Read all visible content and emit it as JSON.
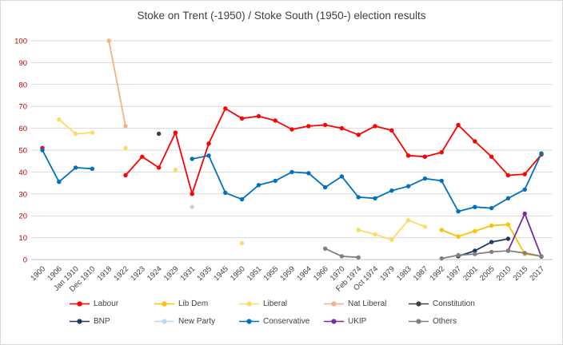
{
  "chart_data": {
    "type": "line",
    "title": "Stoke on Trent (-1950) / Stoke South (1950-) election results",
    "xlabel": "",
    "ylabel": "",
    "ylim": [
      0,
      100
    ],
    "ytick_interval": 10,
    "grid": true,
    "legend_position": "bottom",
    "categories": [
      "1900",
      "1906",
      "Jan 1910",
      "Dec 1910",
      "1918",
      "1922",
      "1923",
      "1924",
      "1929",
      "1931",
      "1935",
      "1945",
      "1950",
      "1951",
      "1955",
      "1959",
      "1964",
      "1966",
      "1970",
      "Feb 1974",
      "Oct 1974",
      "1979",
      "1983",
      "1987",
      "1992",
      "1997",
      "2001",
      "2005",
      "2010",
      "2015",
      "2017"
    ],
    "series": [
      {
        "name": "Labour",
        "color": "#FF0000",
        "values": [
          51,
          null,
          null,
          null,
          null,
          38.5,
          47,
          42,
          58,
          30,
          53,
          69,
          64.5,
          65.5,
          63.5,
          59.5,
          61,
          61.5,
          60,
          57,
          61,
          59,
          47.5,
          47,
          49,
          61.5,
          54,
          47,
          38.5,
          39,
          48
        ]
      },
      {
        "name": "Lib Dem",
        "color": "#FFC000",
        "values": [
          null,
          null,
          null,
          null,
          null,
          null,
          null,
          null,
          null,
          null,
          null,
          null,
          null,
          null,
          null,
          null,
          null,
          null,
          null,
          null,
          null,
          null,
          null,
          null,
          13.5,
          10.5,
          13,
          15.5,
          16,
          2.5,
          1.5
        ]
      },
      {
        "name": "Liberal",
        "color": "#FFD966",
        "values": [
          null,
          64,
          57.5,
          58,
          null,
          51,
          null,
          null,
          41,
          null,
          null,
          null,
          7.5,
          null,
          null,
          null,
          null,
          null,
          null,
          13.5,
          11.5,
          9,
          18,
          15,
          null,
          null,
          null,
          null,
          null,
          null,
          null
        ]
      },
      {
        "name": "Nat Liberal",
        "color": "#F4B183",
        "values": [
          null,
          null,
          null,
          null,
          100,
          61,
          null,
          null,
          null,
          null,
          null,
          null,
          null,
          null,
          null,
          null,
          null,
          null,
          null,
          null,
          null,
          null,
          null,
          null,
          null,
          null,
          null,
          null,
          null,
          null,
          null
        ]
      },
      {
        "name": "Constitution",
        "color": "#404040",
        "values": [
          null,
          null,
          null,
          null,
          null,
          null,
          null,
          57.5,
          null,
          null,
          null,
          null,
          null,
          null,
          null,
          null,
          null,
          null,
          null,
          null,
          null,
          null,
          null,
          null,
          null,
          null,
          null,
          null,
          null,
          null,
          null
        ]
      },
      {
        "name": "BNP",
        "color": "#1F3864",
        "values": [
          null,
          null,
          null,
          null,
          null,
          null,
          null,
          null,
          null,
          null,
          null,
          null,
          null,
          null,
          null,
          null,
          null,
          null,
          null,
          null,
          null,
          null,
          null,
          null,
          null,
          1.5,
          4,
          8,
          9.5,
          null,
          null
        ]
      },
      {
        "name": "New Party",
        "color": "#BDD7EE",
        "values": [
          null,
          null,
          null,
          null,
          null,
          null,
          null,
          null,
          null,
          24,
          null,
          null,
          null,
          null,
          null,
          null,
          null,
          null,
          null,
          null,
          null,
          null,
          null,
          null,
          null,
          null,
          null,
          null,
          null,
          null,
          null
        ]
      },
      {
        "name": "Conservative",
        "color": "#0070C0",
        "values": [
          50,
          35.5,
          42,
          41.5,
          null,
          null,
          null,
          null,
          null,
          46,
          47.5,
          30.5,
          27.5,
          34,
          36,
          40,
          39.5,
          33,
          38,
          28.5,
          28,
          31.5,
          33.5,
          37,
          36,
          22,
          24,
          23.5,
          28,
          32,
          48.5
        ]
      },
      {
        "name": "UKIP",
        "color": "#7030A0",
        "values": [
          null,
          null,
          null,
          null,
          null,
          null,
          null,
          null,
          null,
          null,
          null,
          null,
          null,
          null,
          null,
          null,
          null,
          null,
          null,
          null,
          null,
          null,
          null,
          null,
          null,
          null,
          null,
          null,
          4,
          21,
          1.3
        ]
      },
      {
        "name": "Others",
        "color": "#808080",
        "values": [
          null,
          null,
          null,
          null,
          null,
          null,
          null,
          null,
          null,
          null,
          null,
          null,
          null,
          null,
          null,
          null,
          null,
          5,
          1.5,
          1,
          null,
          null,
          null,
          null,
          0.5,
          2,
          2.5,
          3.5,
          4,
          3,
          1.5
        ]
      }
    ],
    "styles": {
      "title_color": "#404040",
      "y_tick_color": "#C00000",
      "x_tick_color": "#404040",
      "grid_color": "#D9D9D9",
      "axis_color": "#BFBFBF",
      "background": "#FFFFFF"
    }
  }
}
